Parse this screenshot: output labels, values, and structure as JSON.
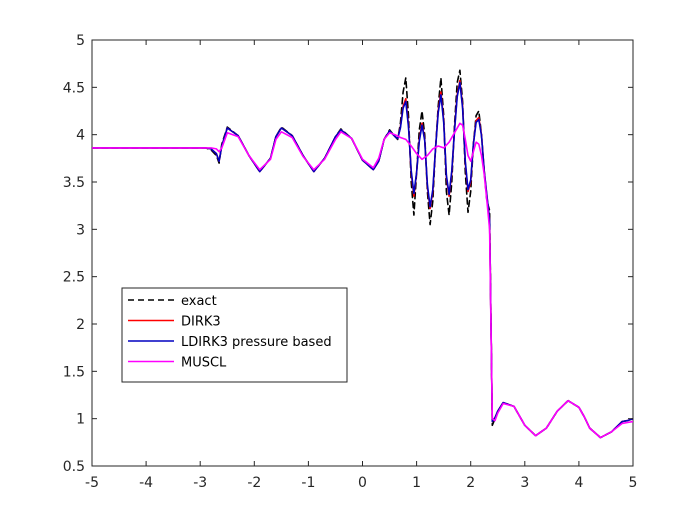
{
  "chart_data": {
    "type": "line",
    "title": "",
    "xlabel": "",
    "ylabel": "",
    "xlim": [
      -5,
      5
    ],
    "ylim": [
      0.5,
      5
    ],
    "xticks": [
      -5,
      -4,
      -3,
      -2,
      -1,
      0,
      1,
      2,
      3,
      4,
      5
    ],
    "yticks": [
      0.5,
      1,
      1.5,
      2,
      2.5,
      3,
      3.5,
      4,
      4.5,
      5
    ],
    "xtick_labels": [
      "-5",
      "-4",
      "-3",
      "-2",
      "-1",
      "0",
      "1",
      "2",
      "3",
      "4",
      "5"
    ],
    "ytick_labels": [
      "0.5",
      "1",
      "1.5",
      "2",
      "2.5",
      "3",
      "3.5",
      "4",
      "4.5",
      "5"
    ],
    "grid": false,
    "legend_position": "lower-left",
    "series": [
      {
        "name": "exact",
        "color": "#000000",
        "dash": "dashed",
        "x": [
          -5,
          -2.9,
          -2.8,
          -2.7,
          -2.65,
          -2.6,
          -2.5,
          -2.3,
          -2.1,
          -1.9,
          -1.7,
          -1.6,
          -1.5,
          -1.3,
          -1.1,
          -0.9,
          -0.7,
          -0.5,
          -0.4,
          -0.2,
          0,
          0.2,
          0.3,
          0.4,
          0.5,
          0.6,
          0.65,
          0.7,
          0.75,
          0.8,
          0.85,
          0.9,
          0.95,
          1.0,
          1.05,
          1.1,
          1.15,
          1.2,
          1.25,
          1.3,
          1.35,
          1.4,
          1.45,
          1.5,
          1.55,
          1.6,
          1.65,
          1.7,
          1.75,
          1.8,
          1.85,
          1.9,
          1.95,
          2.0,
          2.05,
          2.1,
          2.15,
          2.2,
          2.25,
          2.3,
          2.35,
          2.4,
          2.45,
          2.5,
          2.6,
          2.8,
          3.0,
          3.2,
          3.4,
          3.6,
          3.8,
          4.0,
          4.1,
          4.2,
          4.4,
          4.6,
          4.8,
          4.9,
          5
        ],
        "y": [
          3.86,
          3.86,
          3.84,
          3.78,
          3.7,
          3.9,
          4.08,
          3.99,
          3.78,
          3.61,
          3.75,
          3.98,
          4.08,
          3.99,
          3.78,
          3.61,
          3.75,
          3.98,
          4.06,
          3.96,
          3.73,
          3.63,
          3.72,
          3.95,
          4.05,
          3.98,
          3.95,
          4.12,
          4.45,
          4.6,
          4.2,
          3.5,
          3.15,
          3.6,
          4.05,
          4.25,
          4.0,
          3.4,
          3.05,
          3.3,
          3.85,
          4.3,
          4.6,
          4.2,
          3.4,
          3.15,
          3.5,
          4.1,
          4.55,
          4.68,
          4.35,
          3.6,
          3.18,
          3.4,
          3.9,
          4.2,
          4.25,
          4.0,
          3.6,
          3.3,
          3.2,
          0.93,
          1.0,
          1.08,
          1.17,
          1.13,
          0.93,
          0.82,
          0.9,
          1.08,
          1.19,
          1.12,
          1.02,
          0.9,
          0.8,
          0.86,
          0.97,
          0.98,
          1.0
        ]
      },
      {
        "name": "DIRK3",
        "color": "#ff0000",
        "dash": "solid",
        "x": [
          -5,
          -2.9,
          -2.8,
          -2.7,
          -2.65,
          -2.6,
          -2.5,
          -2.3,
          -2.1,
          -1.9,
          -1.7,
          -1.6,
          -1.5,
          -1.3,
          -1.1,
          -0.9,
          -0.7,
          -0.5,
          -0.4,
          -0.2,
          0,
          0.2,
          0.3,
          0.4,
          0.5,
          0.6,
          0.65,
          0.7,
          0.75,
          0.8,
          0.85,
          0.9,
          0.95,
          1.0,
          1.05,
          1.1,
          1.15,
          1.2,
          1.25,
          1.3,
          1.35,
          1.4,
          1.45,
          1.5,
          1.55,
          1.6,
          1.65,
          1.7,
          1.75,
          1.8,
          1.85,
          1.9,
          1.95,
          2.0,
          2.05,
          2.1,
          2.15,
          2.2,
          2.25,
          2.3,
          2.35,
          2.4,
          2.45,
          2.5,
          2.6,
          2.8,
          3.0,
          3.2,
          3.4,
          3.6,
          3.8,
          4.0,
          4.1,
          4.2,
          4.4,
          4.6,
          4.8,
          4.9,
          5
        ],
        "y": [
          3.86,
          3.86,
          3.85,
          3.8,
          3.72,
          3.88,
          4.07,
          3.99,
          3.78,
          3.61,
          3.75,
          3.98,
          4.07,
          3.99,
          3.78,
          3.61,
          3.75,
          3.98,
          4.05,
          3.96,
          3.73,
          3.63,
          3.72,
          3.95,
          4.04,
          3.98,
          3.96,
          4.08,
          4.3,
          4.38,
          4.1,
          3.6,
          3.35,
          3.6,
          3.95,
          4.12,
          3.95,
          3.45,
          3.22,
          3.4,
          3.85,
          4.25,
          4.45,
          4.15,
          3.55,
          3.35,
          3.6,
          4.05,
          4.42,
          4.57,
          4.3,
          3.7,
          3.4,
          3.5,
          3.9,
          4.15,
          4.18,
          4.0,
          3.62,
          3.35,
          3.1,
          0.97,
          1.01,
          1.08,
          1.17,
          1.13,
          0.93,
          0.82,
          0.9,
          1.08,
          1.19,
          1.12,
          1.02,
          0.9,
          0.8,
          0.86,
          0.97,
          0.98,
          1.0
        ]
      },
      {
        "name": "LDIRK3 pressure based",
        "color": "#0000c0",
        "dash": "solid",
        "x": [
          -5,
          -2.9,
          -2.8,
          -2.7,
          -2.65,
          -2.6,
          -2.5,
          -2.3,
          -2.1,
          -1.9,
          -1.7,
          -1.6,
          -1.5,
          -1.3,
          -1.1,
          -0.9,
          -0.7,
          -0.5,
          -0.4,
          -0.2,
          0,
          0.2,
          0.3,
          0.4,
          0.5,
          0.6,
          0.65,
          0.7,
          0.75,
          0.8,
          0.85,
          0.9,
          0.95,
          1.0,
          1.05,
          1.1,
          1.15,
          1.2,
          1.25,
          1.3,
          1.35,
          1.4,
          1.45,
          1.5,
          1.55,
          1.6,
          1.65,
          1.7,
          1.75,
          1.8,
          1.85,
          1.9,
          1.95,
          2.0,
          2.05,
          2.1,
          2.15,
          2.2,
          2.25,
          2.3,
          2.35,
          2.4,
          2.45,
          2.5,
          2.6,
          2.8,
          3.0,
          3.2,
          3.4,
          3.6,
          3.8,
          4.0,
          4.1,
          4.2,
          4.4,
          4.6,
          4.8,
          4.9,
          5
        ],
        "y": [
          3.86,
          3.86,
          3.85,
          3.8,
          3.72,
          3.88,
          4.07,
          3.99,
          3.78,
          3.61,
          3.75,
          3.98,
          4.07,
          3.99,
          3.78,
          3.61,
          3.75,
          3.98,
          4.05,
          3.96,
          3.73,
          3.63,
          3.72,
          3.95,
          4.04,
          3.98,
          3.96,
          4.07,
          4.28,
          4.35,
          4.08,
          3.62,
          3.38,
          3.6,
          3.93,
          4.1,
          3.94,
          3.47,
          3.24,
          3.42,
          3.85,
          4.23,
          4.42,
          4.13,
          3.57,
          3.37,
          3.62,
          4.04,
          4.4,
          4.55,
          4.28,
          3.72,
          3.42,
          3.52,
          3.9,
          4.13,
          4.16,
          3.99,
          3.62,
          3.36,
          3.1,
          0.97,
          1.01,
          1.08,
          1.17,
          1.13,
          0.93,
          0.82,
          0.9,
          1.08,
          1.19,
          1.12,
          1.02,
          0.9,
          0.8,
          0.86,
          0.97,
          0.98,
          1.0
        ]
      },
      {
        "name": "MUSCL",
        "color": "#ff00ff",
        "dash": "solid",
        "x": [
          -5,
          -2.9,
          -2.8,
          -2.7,
          -2.65,
          -2.6,
          -2.5,
          -2.3,
          -2.1,
          -1.9,
          -1.7,
          -1.6,
          -1.5,
          -1.3,
          -1.1,
          -0.9,
          -0.7,
          -0.5,
          -0.4,
          -0.2,
          0,
          0.2,
          0.3,
          0.4,
          0.5,
          0.6,
          0.7,
          0.8,
          0.9,
          1.0,
          1.1,
          1.2,
          1.3,
          1.4,
          1.5,
          1.6,
          1.7,
          1.8,
          1.85,
          1.9,
          1.95,
          2.0,
          2.05,
          2.1,
          2.15,
          2.2,
          2.25,
          2.3,
          2.35,
          2.4,
          2.45,
          2.5,
          2.6,
          2.8,
          3.0,
          3.2,
          3.4,
          3.6,
          3.8,
          4.0,
          4.1,
          4.2,
          4.4,
          4.6,
          4.8,
          4.9,
          5
        ],
        "y": [
          3.86,
          3.86,
          3.86,
          3.85,
          3.82,
          3.86,
          4.02,
          3.98,
          3.78,
          3.63,
          3.74,
          3.95,
          4.03,
          3.97,
          3.77,
          3.63,
          3.74,
          3.95,
          4.03,
          3.96,
          3.74,
          3.65,
          3.75,
          3.95,
          4.02,
          4.0,
          3.97,
          3.95,
          3.88,
          3.8,
          3.74,
          3.78,
          3.85,
          3.88,
          3.86,
          3.92,
          4.02,
          4.12,
          4.1,
          3.95,
          3.78,
          3.72,
          3.82,
          3.92,
          3.9,
          3.78,
          3.58,
          3.3,
          3.0,
          1.0,
          0.98,
          1.06,
          1.16,
          1.13,
          0.93,
          0.82,
          0.9,
          1.08,
          1.19,
          1.12,
          1.02,
          0.9,
          0.8,
          0.86,
          0.95,
          0.96,
          0.97
        ]
      }
    ]
  }
}
